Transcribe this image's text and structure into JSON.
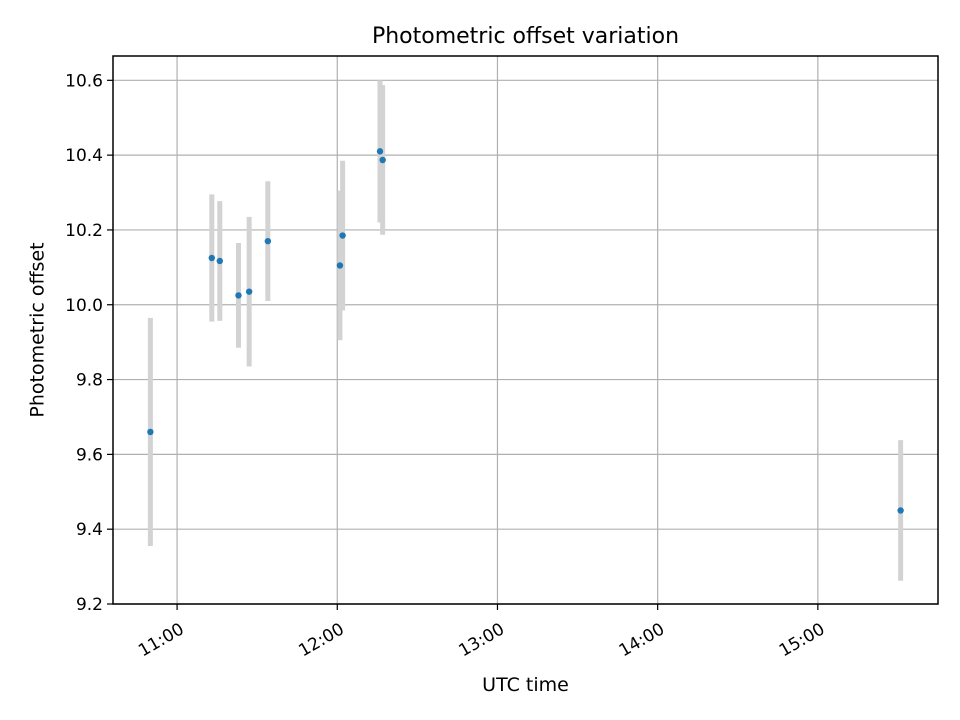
{
  "chart_data": {
    "type": "scatter",
    "title": "Photometric offset variation",
    "xlabel": "UTC time",
    "ylabel": "Photometric offset",
    "x_axis_type": "time",
    "xlim": [
      "10:36",
      "15:45"
    ],
    "ylim": [
      9.2,
      10.665
    ],
    "x_ticks": [
      "11:00",
      "12:00",
      "13:00",
      "14:00",
      "15:00"
    ],
    "y_ticks": [
      "9.2",
      "9.4",
      "9.6",
      "9.8",
      "10.0",
      "10.2",
      "10.4",
      "10.6"
    ],
    "grid": true,
    "legend": "none",
    "points": [
      {
        "x": "10:50",
        "y": 9.66,
        "err": 0.305
      },
      {
        "x": "11:13",
        "y": 10.125,
        "err": 0.17
      },
      {
        "x": "11:16",
        "y": 10.117,
        "err": 0.16
      },
      {
        "x": "11:23",
        "y": 10.025,
        "err": 0.14
      },
      {
        "x": "11:27",
        "y": 10.035,
        "err": 0.2
      },
      {
        "x": "11:34",
        "y": 10.17,
        "err": 0.16
      },
      {
        "x": "12:01",
        "y": 10.105,
        "err": 0.2
      },
      {
        "x": "12:02",
        "y": 10.185,
        "err": 0.2
      },
      {
        "x": "12:16",
        "y": 10.41,
        "err": 0.19
      },
      {
        "x": "12:17",
        "y": 10.387,
        "err": 0.2
      },
      {
        "x": "15:31",
        "y": 9.45,
        "err": 0.188
      }
    ],
    "colors": {
      "point": "#1f77b4",
      "errorbar": "#d3d3d3",
      "grid": "#b0b0b0",
      "axes": "#000000"
    }
  }
}
